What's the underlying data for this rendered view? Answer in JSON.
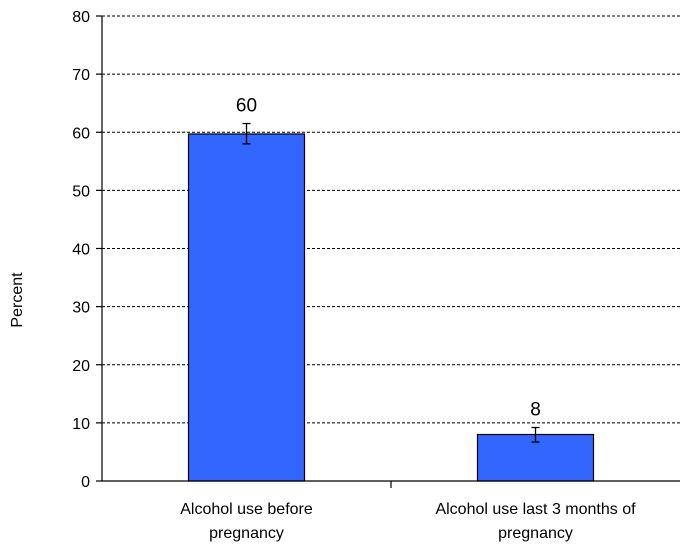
{
  "chart_data": {
    "type": "bar",
    "title": "",
    "xlabel": "",
    "ylabel": "Percent",
    "ylim": [
      0,
      80
    ],
    "yticks": [
      0,
      10,
      20,
      30,
      40,
      50,
      60,
      70,
      80
    ],
    "grid": true,
    "categories": [
      [
        "Alcohol use before",
        "pregnancy"
      ],
      [
        "Alcohol use last 3 months of",
        "pregnancy"
      ]
    ],
    "values": [
      59.7,
      8
    ],
    "error_bars": [
      [
        58.0,
        61.5
      ],
      [
        6.7,
        9.2
      ]
    ],
    "data_labels": [
      "60",
      "8"
    ],
    "bar_color": "#3366ff",
    "bar_edge_color": "#000000"
  }
}
